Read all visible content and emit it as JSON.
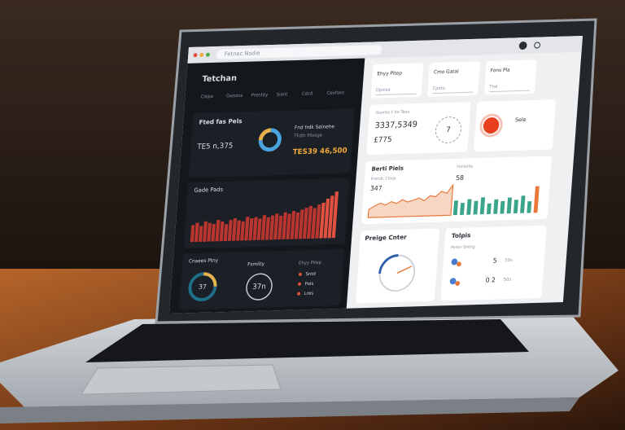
{
  "browser": {
    "url": "Fetnec Nsdie"
  },
  "dark_panel": {
    "title": "Tetchan",
    "tabs": [
      "Cstpa",
      "Gwsons",
      "Prentity",
      "Sient",
      "Cdcd",
      "Cexfons"
    ],
    "summary": {
      "title": "Fted fas Pels",
      "value": "TE5 n,375",
      "caption": "Fnd frdk Selnehe",
      "sub": "TFdlh Pilsoge",
      "amount": "TES39 46,500"
    },
    "sales": {
      "title": "Gade Pads",
      "values": [
        30,
        34,
        28,
        36,
        33,
        31,
        38,
        35,
        30,
        37,
        40,
        36,
        34,
        42,
        39,
        41,
        38,
        44,
        40,
        43,
        46,
        42,
        48,
        45,
        50,
        47,
        52,
        55,
        58,
        54,
        60,
        63,
        70,
        75,
        82
      ]
    },
    "gauge": {
      "title": "Cnaees Ptny",
      "value": "37"
    },
    "family": {
      "title": "Fsmilty",
      "value": "37n"
    },
    "list": {
      "title": "Ehyy Pitep",
      "items": [
        "Sntd",
        "Pals",
        "Lres"
      ]
    }
  },
  "light_panel": {
    "cards": [
      {
        "title": "Ehyy Pitep",
        "sub": "Dpsisa"
      },
      {
        "title": "Cmo Gatal",
        "sub": "Cpsto"
      },
      {
        "title": "Fons Pla",
        "sub": "Tnd"
      }
    ],
    "totals": {
      "caption": "Gsente F be Taoe",
      "value": "3337,5349",
      "sub": "£775",
      "dial": "7"
    },
    "sele": {
      "title": "Sele"
    },
    "trend": {
      "title": "Berti Piels",
      "caption": "Frendc Clasp",
      "value": "347",
      "values": [
        20,
        28,
        35,
        30,
        38,
        33,
        42,
        36,
        40,
        45,
        38,
        50,
        47,
        60,
        55,
        75
      ]
    },
    "bars": {
      "caption": "Fonlstile",
      "value": "58",
      "values": [
        30,
        25,
        32,
        28,
        35,
        22,
        30,
        26,
        33,
        28,
        36,
        24,
        55
      ]
    },
    "center": {
      "title": "Preige Cnter"
    },
    "topics": {
      "title": "Tolpis",
      "caption": "Pener Sntrig",
      "rows": [
        "5",
        "0 2"
      ],
      "tags": [
        "50s",
        "50s"
      ]
    }
  }
}
